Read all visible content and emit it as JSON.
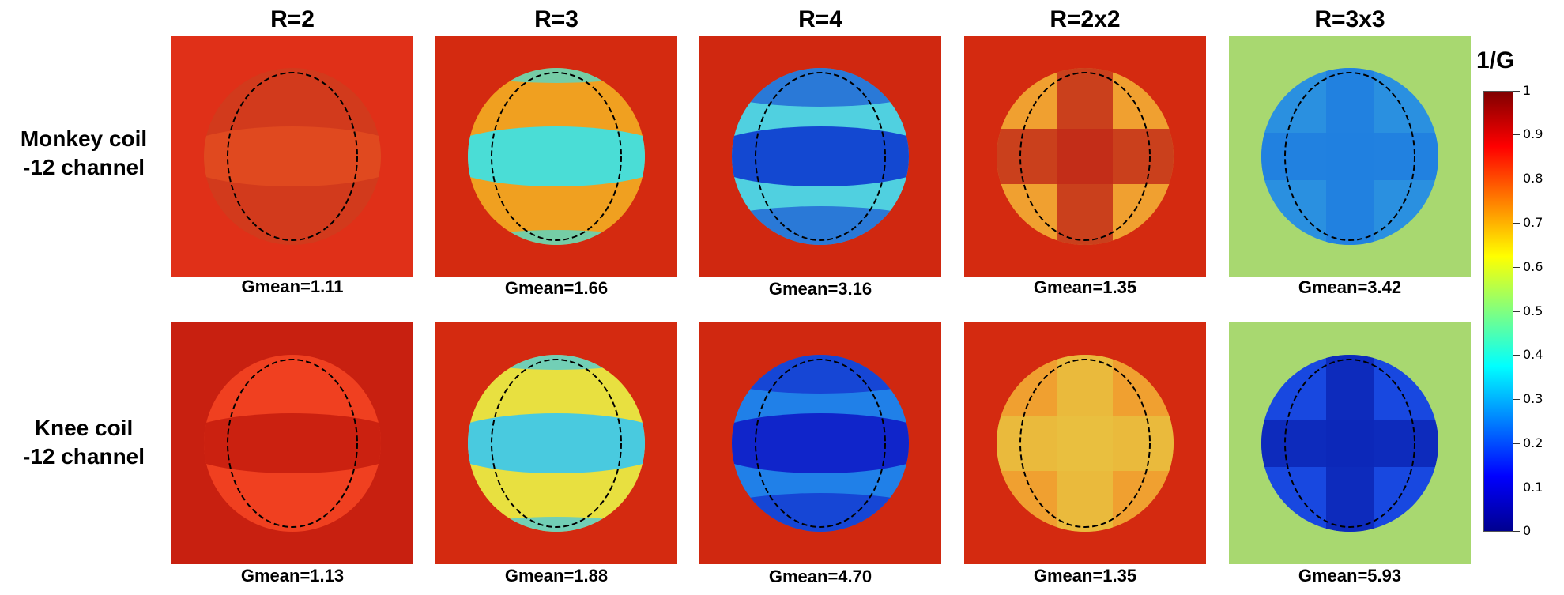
{
  "columns": [
    "R=2",
    "R=3",
    "R=4",
    "R=2x2",
    "R=3x3"
  ],
  "rows": [
    {
      "label_line1": "Monkey coil",
      "label_line2": "-12 channel",
      "gmeans": [
        "Gmean=1.11",
        "Gmean=1.66",
        "Gmean=3.16",
        "Gmean=1.35",
        "Gmean=3.42"
      ]
    },
    {
      "label_line1": "Knee coil",
      "label_line2": "-12 channel",
      "gmeans": [
        "Gmean=1.13",
        "Gmean=1.88",
        "Gmean=4.70",
        "Gmean=1.35",
        "Gmean=5.93"
      ]
    }
  ],
  "colorbar": {
    "title": "1/G",
    "ticks": [
      "1",
      "0.9",
      "0.8",
      "0.7",
      "0.6",
      "0.5",
      "0.4",
      "0.3",
      "0.2",
      "0.1",
      "0"
    ],
    "colormap": [
      "#00008f",
      "#0000ff",
      "#0080ff",
      "#00ffff",
      "#80ff80",
      "#ffff00",
      "#ff8000",
      "#ff0000",
      "#800000"
    ]
  },
  "panel_colors": {
    "background_red": "#d42a10",
    "monkey": [
      {
        "outer": "#e03018",
        "disc": "#d23a1c",
        "center": "#e04a20"
      },
      {
        "outer": "#d42a10",
        "disc": "#f0a020",
        "center": "#40e0e0"
      },
      {
        "outer": "#d02810",
        "disc": "#50d0e0",
        "center": "#1040d0"
      },
      {
        "outer": "#d42a10",
        "disc": "#f0a030",
        "center": "#c02818"
      },
      {
        "outer": "#a8d870",
        "disc": "#2a90e0",
        "center": "#2080e0"
      }
    ],
    "knee": [
      {
        "outer": "#c82010",
        "disc": "#f04020",
        "center": "#c82010"
      },
      {
        "outer": "#d42a10",
        "disc": "#e8e040",
        "center": "#40c8e8"
      },
      {
        "outer": "#d02810",
        "disc": "#2080e8",
        "center": "#1020c8"
      },
      {
        "outer": "#d42a10",
        "disc": "#f0a030",
        "center": "#e8c040"
      },
      {
        "outer": "#a8d870",
        "disc": "#1848e0",
        "center": "#0c28b8"
      }
    ]
  }
}
